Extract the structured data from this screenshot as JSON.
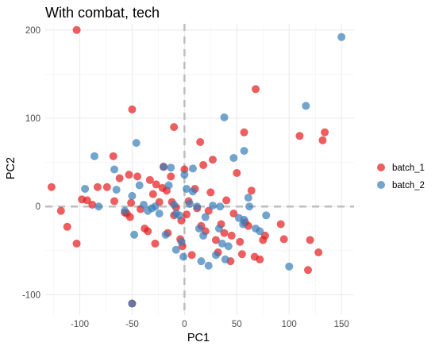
{
  "chart_data": {
    "type": "scatter",
    "title": "With combat, tech",
    "xlabel": "PC1",
    "ylabel": "PC2",
    "xlim": [
      -133,
      162
    ],
    "ylim": [
      -123,
      207
    ],
    "xticks": [
      -100,
      -50,
      0,
      50,
      100,
      150
    ],
    "yticks": [
      -100,
      0,
      100,
      200
    ],
    "grid": true,
    "reference_lines": {
      "x": 0,
      "y": 0,
      "style": "dashed"
    },
    "legend_position": "right",
    "series": [
      {
        "name": "batch_1",
        "color": "#E41A1C",
        "points": [
          [
            -50,
            110
          ],
          [
            -10,
            90
          ],
          [
            -127,
            22
          ],
          [
            -118,
            -5
          ],
          [
            -112,
            -23
          ],
          [
            -103,
            -42
          ],
          [
            -98,
            8
          ],
          [
            -93,
            7
          ],
          [
            -88,
            2
          ],
          [
            -83,
            22
          ],
          [
            -74,
            22
          ],
          [
            -68,
            57
          ],
          [
            -67,
            6
          ],
          [
            -62,
            32
          ],
          [
            -57,
            -7
          ],
          [
            -55,
            -8
          ],
          [
            -53,
            36
          ],
          [
            -52,
            -12
          ],
          [
            -51,
            4
          ],
          [
            -45,
            34
          ],
          [
            -42,
            -3
          ],
          [
            -38,
            -25
          ],
          [
            -35,
            -28
          ],
          [
            -33,
            30
          ],
          [
            -30,
            14
          ],
          [
            -28,
            -42
          ],
          [
            -27,
            25
          ],
          [
            -24,
            5
          ],
          [
            -21,
            21
          ],
          [
            -20,
            45
          ],
          [
            -17,
            18
          ],
          [
            -16,
            -30
          ],
          [
            -13,
            34
          ],
          [
            -12,
            5
          ],
          [
            -10,
            -10
          ],
          [
            -8,
            -1
          ],
          [
            -4,
            -37
          ],
          [
            -3,
            -16
          ],
          [
            -2,
            -45
          ],
          [
            0,
            42
          ],
          [
            2,
            -9
          ],
          [
            4,
            6
          ],
          [
            7,
            -55
          ],
          [
            10,
            20
          ],
          [
            12,
            -2
          ],
          [
            15,
            73
          ],
          [
            16,
            -22
          ],
          [
            18,
            47
          ],
          [
            20,
            -28
          ],
          [
            23,
            -5
          ],
          [
            25,
            16
          ],
          [
            27,
            53
          ],
          [
            30,
            -38
          ],
          [
            32,
            -52
          ],
          [
            35,
            -20
          ],
          [
            38,
            -30
          ],
          [
            40,
            7
          ],
          [
            44,
            -62
          ],
          [
            45,
            -33
          ],
          [
            47,
            -8
          ],
          [
            50,
            38
          ],
          [
            53,
            -40
          ],
          [
            55,
            -54
          ],
          [
            57,
            84
          ],
          [
            58,
            -18
          ],
          [
            61,
            -22
          ],
          [
            64,
            18
          ],
          [
            67,
            -57
          ],
          [
            68,
            133
          ],
          [
            72,
            -60
          ],
          [
            75,
            -38
          ],
          [
            77,
            -33
          ],
          [
            92,
            -20
          ],
          [
            95,
            -37
          ],
          [
            110,
            80
          ],
          [
            120,
            -38
          ],
          [
            118,
            -72
          ],
          [
            128,
            -52
          ],
          [
            132,
            75
          ],
          [
            134,
            84
          ],
          [
            -50,
            -110
          ],
          [
            -103,
            200
          ]
        ]
      },
      {
        "name": "batch_2",
        "color": "#377EB8",
        "points": [
          [
            150,
            192
          ],
          [
            116,
            114
          ],
          [
            38,
            101
          ],
          [
            57,
            63
          ],
          [
            -46,
            72
          ],
          [
            -86,
            57
          ],
          [
            -67,
            42
          ],
          [
            -95,
            20
          ],
          [
            -82,
            0
          ],
          [
            -65,
            19
          ],
          [
            -57,
            -5
          ],
          [
            -50,
            12
          ],
          [
            -48,
            -32
          ],
          [
            -43,
            24
          ],
          [
            -39,
            2
          ],
          [
            -35,
            -5
          ],
          [
            -31,
            -2
          ],
          [
            -28,
            0
          ],
          [
            -24,
            -8
          ],
          [
            -20,
            45
          ],
          [
            -18,
            -32
          ],
          [
            -15,
            24
          ],
          [
            -13,
            44
          ],
          [
            -10,
            2
          ],
          [
            -8,
            -8
          ],
          [
            -5,
            -10
          ],
          [
            -3,
            -40
          ],
          [
            0,
            36
          ],
          [
            2,
            20
          ],
          [
            5,
            3
          ],
          [
            8,
            17
          ],
          [
            12,
            0
          ],
          [
            14,
            -25
          ],
          [
            16,
            -62
          ],
          [
            18,
            -33
          ],
          [
            20,
            -12
          ],
          [
            23,
            -67
          ],
          [
            27,
            1
          ],
          [
            30,
            -55
          ],
          [
            33,
            -25
          ],
          [
            36,
            -42
          ],
          [
            39,
            -60
          ],
          [
            42,
            -45
          ],
          [
            47,
            55
          ],
          [
            52,
            -13
          ],
          [
            56,
            -20
          ],
          [
            62,
            0
          ],
          [
            68,
            -25
          ],
          [
            72,
            -28
          ],
          [
            78,
            -10
          ],
          [
            100,
            -68
          ],
          [
            -50,
            -110
          ],
          [
            8,
            43
          ],
          [
            -1,
            -57
          ],
          [
            34,
            0
          ],
          [
            57,
            -15
          ],
          [
            61,
            10
          ],
          [
            -8,
            -49
          ]
        ]
      }
    ]
  }
}
